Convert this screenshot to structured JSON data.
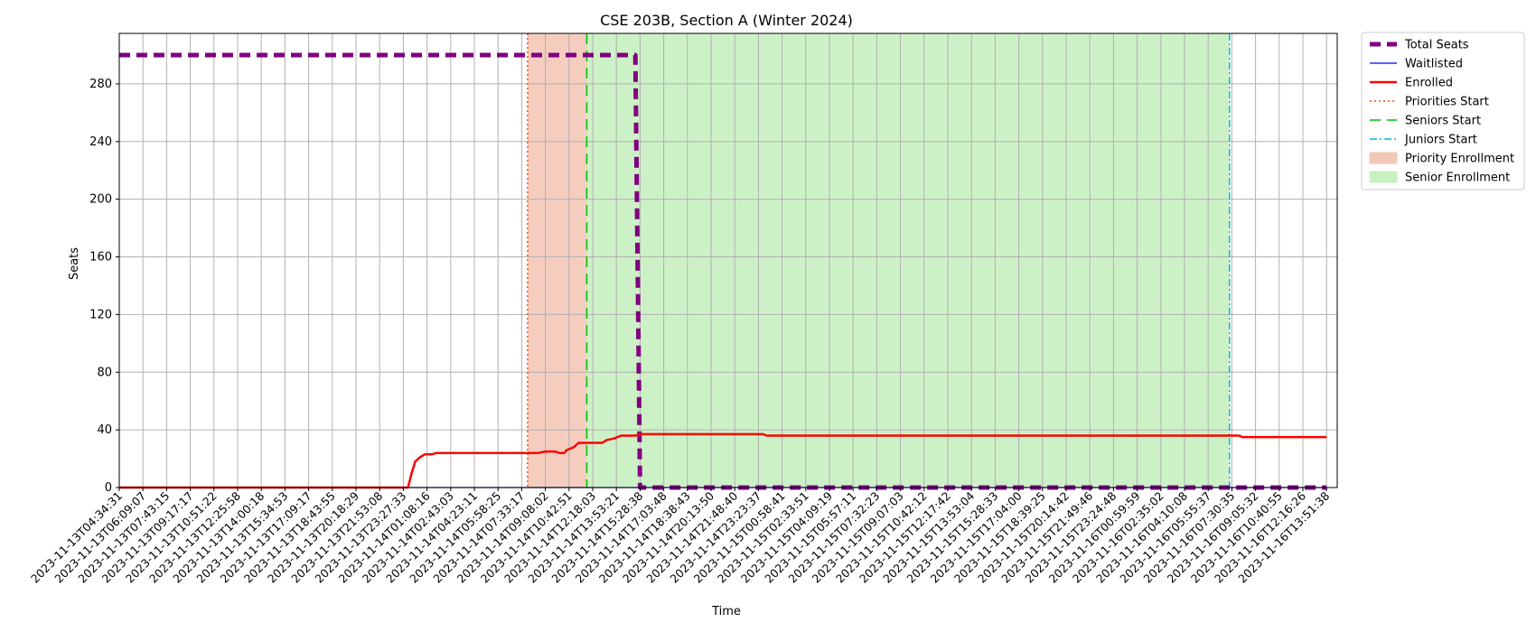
{
  "chart_data": {
    "type": "line",
    "title": "CSE 203B, Section A (Winter 2024)",
    "xlabel": "Time",
    "ylabel": "Seats",
    "ylim": [
      0,
      300
    ],
    "yticks": [
      0,
      40,
      80,
      120,
      160,
      200,
      240,
      280
    ],
    "grid": true,
    "legend_position": "outside-right-top",
    "x_categories": [
      "2023-11-13T04:34:31",
      "2023-11-13T06:09:07",
      "2023-11-13T07:43:15",
      "2023-11-13T09:17:17",
      "2023-11-13T10:51:22",
      "2023-11-13T12:25:58",
      "2023-11-13T14:00:18",
      "2023-11-13T15:34:53",
      "2023-11-13T17:09:17",
      "2023-11-13T18:43:55",
      "2023-11-13T20:18:29",
      "2023-11-13T21:53:08",
      "2023-11-13T23:27:33",
      "2023-11-14T01:08:16",
      "2023-11-14T02:43:03",
      "2023-11-14T04:23:11",
      "2023-11-14T05:58:25",
      "2023-11-14T07:33:17",
      "2023-11-14T09:08:02",
      "2023-11-14T10:42:51",
      "2023-11-14T12:18:03",
      "2023-11-14T13:53:21",
      "2023-11-14T15:28:38",
      "2023-11-14T17:03:48",
      "2023-11-14T18:38:43",
      "2023-11-14T20:13:50",
      "2023-11-14T21:48:40",
      "2023-11-14T23:23:37",
      "2023-11-15T00:58:41",
      "2023-11-15T02:33:51",
      "2023-11-15T04:09:19",
      "2023-11-15T05:57:11",
      "2023-11-15T07:32:23",
      "2023-11-15T09:07:03",
      "2023-11-15T10:42:12",
      "2023-11-15T12:17:42",
      "2023-11-15T13:53:04",
      "2023-11-15T15:28:33",
      "2023-11-15T17:04:00",
      "2023-11-15T18:39:25",
      "2023-11-15T20:14:42",
      "2023-11-15T21:49:46",
      "2023-11-15T23:24:48",
      "2023-11-16T00:59:59",
      "2023-11-16T02:35:02",
      "2023-11-16T04:10:08",
      "2023-11-16T05:55:37",
      "2023-11-16T07:30:35",
      "2023-11-16T09:05:32",
      "2023-11-16T10:40:55",
      "2023-11-16T12:16:26",
      "2023-11-16T13:51:38"
    ],
    "series": [
      {
        "name": "Total Seats",
        "color": "#800080",
        "style": "dashed",
        "points": [
          [
            0,
            300
          ],
          [
            21.8,
            300
          ],
          [
            22.0,
            0
          ],
          [
            51,
            0
          ]
        ]
      },
      {
        "name": "Waitlisted",
        "color": "#0000ff",
        "style": "solid",
        "points": [
          [
            0,
            0
          ],
          [
            51,
            0
          ]
        ]
      },
      {
        "name": "Enrolled",
        "color": "#ff0000",
        "style": "solid",
        "points": [
          [
            0,
            0
          ],
          [
            12.2,
            0
          ],
          [
            12.35,
            10
          ],
          [
            12.5,
            18
          ],
          [
            12.7,
            21
          ],
          [
            12.9,
            23
          ],
          [
            13.2,
            23
          ],
          [
            13.4,
            24
          ],
          [
            17.7,
            24
          ],
          [
            18.0,
            25
          ],
          [
            18.4,
            25
          ],
          [
            18.6,
            24
          ],
          [
            18.8,
            24
          ],
          [
            18.9,
            26
          ],
          [
            19.2,
            28
          ],
          [
            19.4,
            31
          ],
          [
            20.4,
            31
          ],
          [
            20.6,
            33
          ],
          [
            20.9,
            34
          ],
          [
            21.2,
            36
          ],
          [
            21.8,
            36
          ],
          [
            22.0,
            37
          ],
          [
            27.2,
            37
          ],
          [
            27.35,
            36
          ],
          [
            47.3,
            36
          ],
          [
            47.45,
            35
          ],
          [
            51,
            35
          ]
        ]
      }
    ],
    "vertical_lines": [
      {
        "name": "Priorities Start",
        "x": 17.25,
        "color": "#ff4500",
        "style": "dotted"
      },
      {
        "name": "Seniors Start",
        "x": 19.75,
        "color": "#00bb00",
        "style": "dashed"
      },
      {
        "name": "Juniors Start",
        "x": 46.9,
        "color": "#00bbcc",
        "style": "dashdot"
      }
    ],
    "spans": [
      {
        "name": "Priority Enrollment",
        "x0": 17.25,
        "x1": 19.75,
        "color": "#f4c8b8"
      },
      {
        "name": "Senior Enrollment",
        "x0": 19.75,
        "x1": 46.9,
        "color": "#c8f0c0"
      }
    ],
    "legend": [
      "Total Seats",
      "Waitlisted",
      "Enrolled",
      "Priorities Start",
      "Seniors Start",
      "Juniors Start",
      "Priority Enrollment",
      "Senior Enrollment"
    ]
  }
}
